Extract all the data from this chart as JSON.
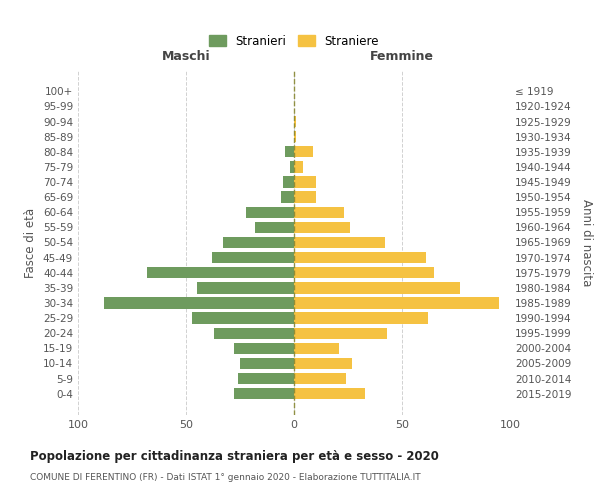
{
  "age_groups": [
    "100+",
    "95-99",
    "90-94",
    "85-89",
    "80-84",
    "75-79",
    "70-74",
    "65-69",
    "60-64",
    "55-59",
    "50-54",
    "45-49",
    "40-44",
    "35-39",
    "30-34",
    "25-29",
    "20-24",
    "15-19",
    "10-14",
    "5-9",
    "0-4"
  ],
  "birth_years": [
    "≤ 1919",
    "1920-1924",
    "1925-1929",
    "1930-1934",
    "1935-1939",
    "1940-1944",
    "1945-1949",
    "1950-1954",
    "1955-1959",
    "1960-1964",
    "1965-1969",
    "1970-1974",
    "1975-1979",
    "1980-1984",
    "1985-1989",
    "1990-1994",
    "1995-1999",
    "2000-2004",
    "2005-2009",
    "2010-2014",
    "2015-2019"
  ],
  "maschi": [
    0,
    0,
    0,
    0,
    4,
    2,
    5,
    6,
    22,
    18,
    33,
    38,
    68,
    45,
    88,
    47,
    37,
    28,
    25,
    26,
    28
  ],
  "femmine": [
    0,
    0,
    1,
    1,
    9,
    4,
    10,
    10,
    23,
    26,
    42,
    61,
    65,
    77,
    95,
    62,
    43,
    21,
    27,
    24,
    33
  ],
  "color_maschi": "#6e9b5e",
  "color_femmine": "#f5c242",
  "title": "Popolazione per cittadinanza straniera per età e sesso - 2020",
  "subtitle": "COMUNE DI FERENTINO (FR) - Dati ISTAT 1° gennaio 2020 - Elaborazione TUTTITALIA.IT",
  "xlabel_left": "Maschi",
  "xlabel_right": "Femmine",
  "ylabel_left": "Fasce di età",
  "ylabel_right": "Anni di nascita",
  "legend_maschi": "Stranieri",
  "legend_femmine": "Straniere",
  "xlim": 100,
  "background_color": "#ffffff",
  "grid_color": "#cccccc"
}
